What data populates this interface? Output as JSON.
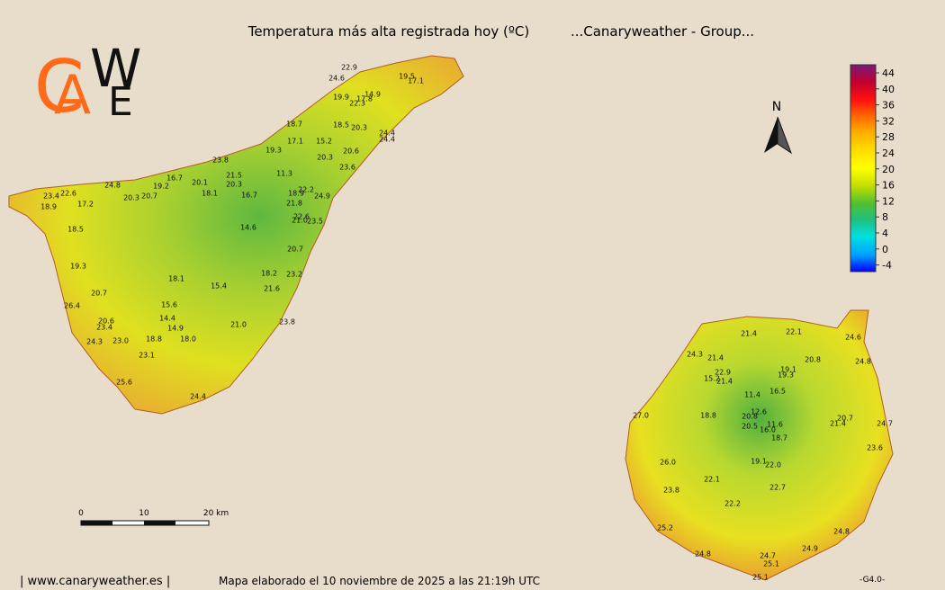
{
  "title": "Temperatura más alta registrada hoy (ºC)",
  "group": "...Canaryweather - Group...",
  "logo": [
    "C",
    "A",
    "W",
    "E"
  ],
  "north": "N",
  "legend_ticks": [
    "44",
    "40",
    "36",
    "32",
    "28",
    "24",
    "20",
    "16",
    "12",
    "8",
    "4",
    "0",
    "-4"
  ],
  "scale": [
    "0",
    "10",
    "20 km"
  ],
  "tenerife_stations": [
    "22.9",
    "24.6",
    "19.5",
    "17.1",
    "14.9",
    "17.8",
    "19.9",
    "22.3",
    "18.7",
    "18.5",
    "20.3",
    "24.4",
    "24.4",
    "17.1",
    "15.2",
    "20.6",
    "20.3",
    "23.8",
    "23.6",
    "19.3",
    "11.3",
    "21.5",
    "16.7",
    "20.1",
    "20.3",
    "24.8",
    "19.2",
    "18.1",
    "16.7",
    "18.9",
    "22.2",
    "24.9",
    "23.4",
    "22.6",
    "20.3",
    "20.7",
    "17.2",
    "18.9",
    "21.8",
    "22.6",
    "21.0",
    "23.5",
    "14.6",
    "18.5",
    "20.7",
    "19.3",
    "18.2",
    "23.2",
    "18.1",
    "15.4",
    "21.6",
    "20.7",
    "26.4",
    "15.6",
    "20.6",
    "23.4",
    "14.4",
    "23.8",
    "21.0",
    "14.9",
    "24.3",
    "23.0",
    "18.8",
    "18.0",
    "23.1",
    "25.6",
    "24.4"
  ],
  "gran_canaria_stations": [
    "21.4",
    "22.1",
    "24.6",
    "24.3",
    "21.4",
    "20.8",
    "24.8",
    "22.9",
    "19.1",
    "19.3",
    "15.2",
    "21.4",
    "16.5",
    "11.4",
    "12.6",
    "18.8",
    "20.8",
    "20.7",
    "21.4",
    "24.7",
    "27.0",
    "11.6",
    "20.5",
    "16.0",
    "18.7",
    "23.6",
    "19.1",
    "22.0",
    "26.0",
    "22.1",
    "22.7",
    "23.8",
    "22.2",
    "25.2",
    "24.8",
    "24.9",
    "24.8",
    "24.7",
    "25.1",
    "25.1"
  ],
  "footer": {
    "site": "| www.canaryweather.es |",
    "made": "Mapa elaborado el 10 noviembre de 2025 a las 21:19h UTC",
    "version": "-G4.0-"
  }
}
